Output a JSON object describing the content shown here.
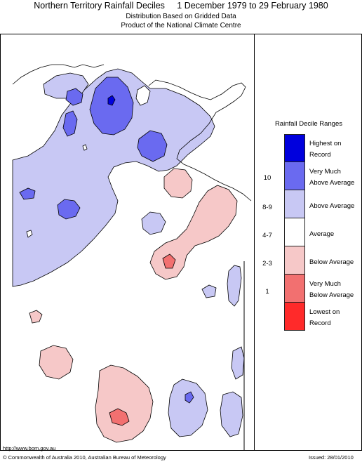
{
  "header": {
    "title": "Northern Territory Rainfall Deciles     1 December 1979 to 29 February 1980",
    "subtitle_1": "Distribution Based on Gridded Data",
    "subtitle_2": "Product of the National Climate Centre"
  },
  "legend": {
    "title": "Rainfall Decile Ranges",
    "items": [
      {
        "label_1": "Highest on",
        "label_2": "Record",
        "decile": "",
        "color": "#0000dd"
      },
      {
        "label_1": "Very Much",
        "label_2": "Above Average",
        "decile": "10",
        "color": "#6a6af0"
      },
      {
        "label_1": "Above Average",
        "label_2": "",
        "decile": "8-9",
        "color": "#c8c8f4"
      },
      {
        "label_1": "Average",
        "label_2": "",
        "decile": "4-7",
        "color": "#ffffff"
      },
      {
        "label_1": "Below Average",
        "label_2": "",
        "decile": "2-3",
        "color": "#f6c8c8"
      },
      {
        "label_1": "Very Much",
        "label_2": "Below Average",
        "decile": "1",
        "color": "#f27070"
      },
      {
        "label_1": "Lowest on",
        "label_2": "Record",
        "decile": "",
        "color": "#ff2a2a"
      }
    ]
  },
  "footer": {
    "url": "http://www.bom.gov.au",
    "copyright": "© Commonwealth of Australia 2010, Australian Bureau of Meteorology",
    "issued": "Issued: 28/01/2010"
  }
}
